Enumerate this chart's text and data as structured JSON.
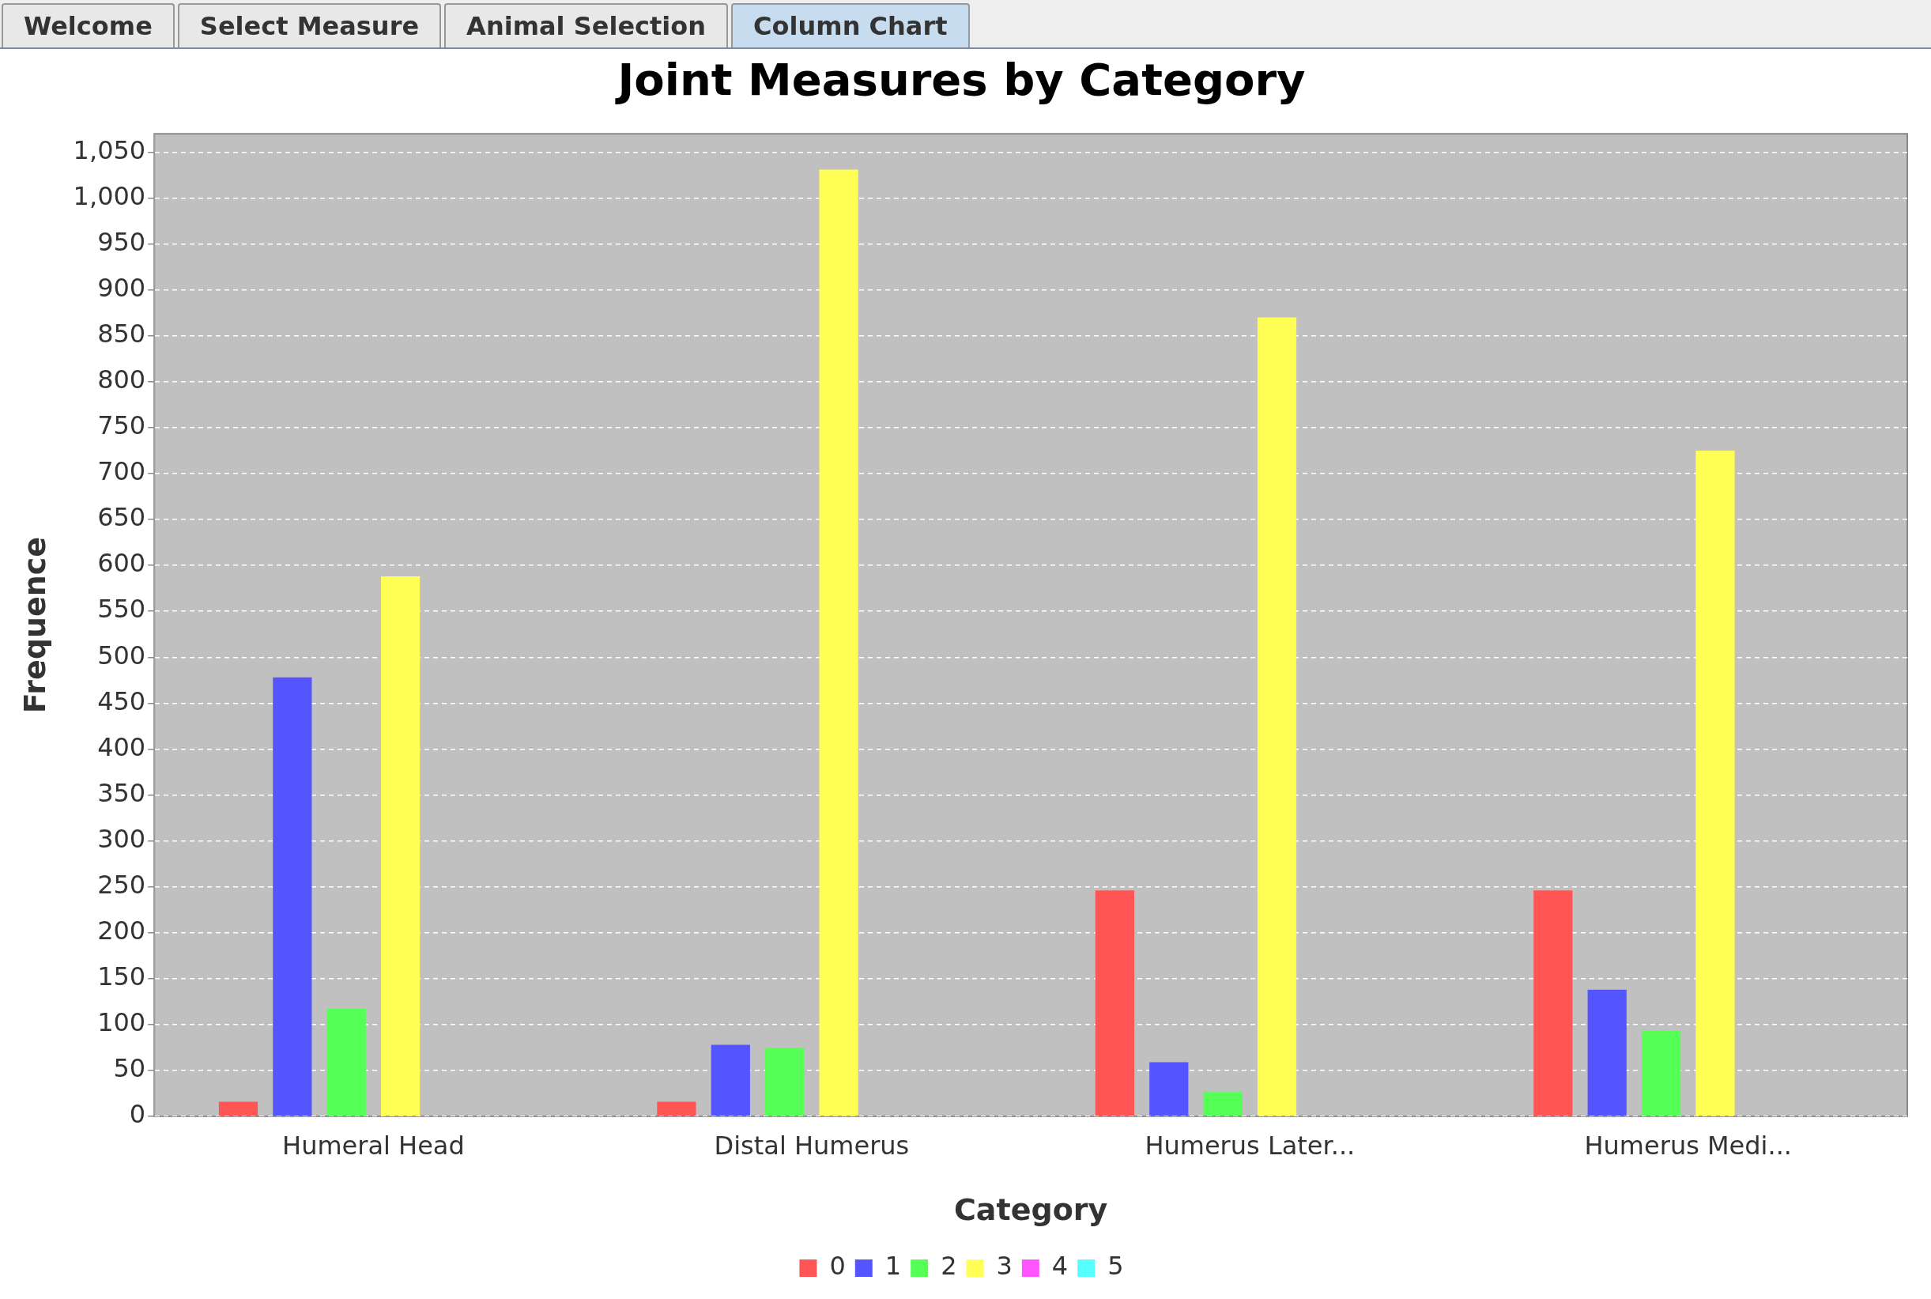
{
  "chart_data": {
    "type": "bar",
    "title": "Joint Measures by Category",
    "xlabel": "Category",
    "ylabel": "Frequence",
    "annotations": [
      "Welcome",
      "Select Measure",
      "Animal Selection",
      "Column Chart"
    ],
    "categories": [
      "Humeral Head",
      "Distal Humerus",
      "Humerus Later...",
      "Humerus Medi..."
    ],
    "series": [
      {
        "name": "0",
        "color": "#ff5555",
        "values": [
          16,
          16,
          246,
          246
        ]
      },
      {
        "name": "1",
        "color": "#5555ff",
        "values": [
          478,
          78,
          59,
          138
        ]
      },
      {
        "name": "2",
        "color": "#55ff55",
        "values": [
          117,
          75,
          27,
          93
        ]
      },
      {
        "name": "3",
        "color": "#ffff55",
        "values": [
          588,
          1031,
          870,
          725
        ]
      },
      {
        "name": "4",
        "color": "#ff55ff",
        "values": [
          0,
          0,
          0,
          0
        ]
      },
      {
        "name": "5",
        "color": "#55ffff",
        "values": [
          0,
          0,
          0,
          0
        ]
      }
    ],
    "ylim": [
      0,
      1070
    ],
    "yticks": [
      0,
      50,
      100,
      150,
      200,
      250,
      300,
      350,
      400,
      450,
      500,
      550,
      600,
      650,
      700,
      750,
      800,
      850,
      900,
      950,
      {
        "value": 1000,
        "label": "1,000"
      },
      {
        "value": 1050,
        "label": "1,050"
      }
    ],
    "grid": "y",
    "legend": "bottom"
  }
}
